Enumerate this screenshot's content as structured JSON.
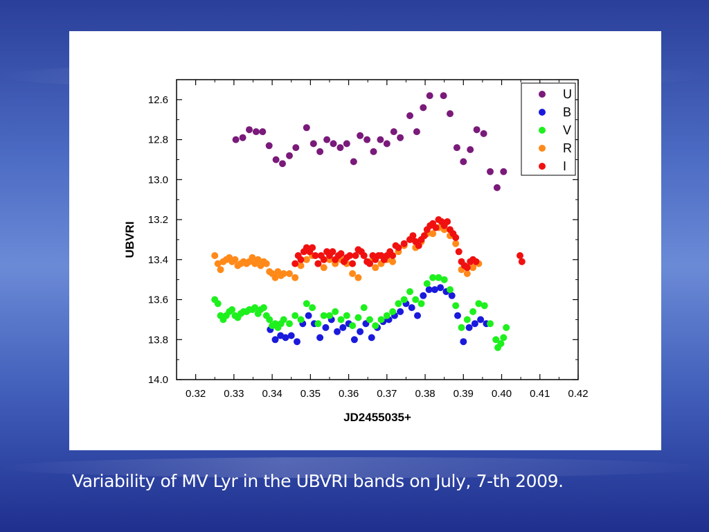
{
  "caption": "Variability of MV Lyr in the UBVRI bands on July, 7-th 2009.",
  "chart_data": {
    "type": "scatter",
    "title": "",
    "xlabel": "JD2455035+",
    "ylabel": "UBVRI",
    "xlim": [
      0.315,
      0.42
    ],
    "ylim": [
      14.0,
      12.5
    ],
    "y_inverted": true,
    "xticks": [
      "0.32",
      "0.33",
      "0.34",
      "0.35",
      "0.36",
      "0.37",
      "0.38",
      "0.39",
      "0.40",
      "0.41",
      "0.42"
    ],
    "yticks": [
      "12.6",
      "12.8",
      "13.0",
      "13.2",
      "13.4",
      "13.6",
      "13.8",
      "14.0"
    ],
    "legend_position": "top-right",
    "grid": false,
    "series": [
      {
        "name": "U",
        "color": "#7a1a7a",
        "points": [
          [
            0.3305,
            12.8
          ],
          [
            0.3323,
            12.79
          ],
          [
            0.334,
            12.75
          ],
          [
            0.3358,
            12.76
          ],
          [
            0.3375,
            12.76
          ],
          [
            0.3392,
            12.83
          ],
          [
            0.341,
            12.9
          ],
          [
            0.3427,
            12.92
          ],
          [
            0.3445,
            12.88
          ],
          [
            0.3462,
            12.84
          ],
          [
            0.349,
            12.74
          ],
          [
            0.3508,
            12.82
          ],
          [
            0.3525,
            12.86
          ],
          [
            0.3543,
            12.8
          ],
          [
            0.356,
            12.82
          ],
          [
            0.3578,
            12.84
          ],
          [
            0.3595,
            12.82
          ],
          [
            0.3613,
            12.91
          ],
          [
            0.363,
            12.78
          ],
          [
            0.3648,
            12.8
          ],
          [
            0.3665,
            12.86
          ],
          [
            0.3683,
            12.8
          ],
          [
            0.37,
            12.82
          ],
          [
            0.3718,
            12.76
          ],
          [
            0.3735,
            12.79
          ],
          [
            0.376,
            12.68
          ],
          [
            0.3778,
            12.76
          ],
          [
            0.3795,
            12.64
          ],
          [
            0.3812,
            12.58
          ],
          [
            0.3848,
            12.58
          ],
          [
            0.3865,
            12.67
          ],
          [
            0.3883,
            12.84
          ],
          [
            0.39,
            12.91
          ],
          [
            0.3918,
            12.85
          ],
          [
            0.3935,
            12.75
          ],
          [
            0.3953,
            12.77
          ],
          [
            0.397,
            12.96
          ],
          [
            0.3988,
            13.04
          ],
          [
            0.4005,
            12.96
          ]
        ]
      },
      {
        "name": "B",
        "color": "#1a1adc",
        "points": [
          [
            0.3395,
            13.75
          ],
          [
            0.3408,
            13.8
          ],
          [
            0.3422,
            13.78
          ],
          [
            0.3435,
            13.79
          ],
          [
            0.345,
            13.78
          ],
          [
            0.3465,
            13.81
          ],
          [
            0.348,
            13.72
          ],
          [
            0.3495,
            13.68
          ],
          [
            0.351,
            13.72
          ],
          [
            0.3525,
            13.79
          ],
          [
            0.354,
            13.74
          ],
          [
            0.3555,
            13.7
          ],
          [
            0.357,
            13.76
          ],
          [
            0.3585,
            13.74
          ],
          [
            0.36,
            13.72
          ],
          [
            0.3615,
            13.8
          ],
          [
            0.363,
            13.76
          ],
          [
            0.3645,
            13.72
          ],
          [
            0.366,
            13.79
          ],
          [
            0.3675,
            13.74
          ],
          [
            0.369,
            13.71
          ],
          [
            0.3705,
            13.7
          ],
          [
            0.372,
            13.68
          ],
          [
            0.3735,
            13.66
          ],
          [
            0.375,
            13.62
          ],
          [
            0.3765,
            13.64
          ],
          [
            0.378,
            13.68
          ],
          [
            0.3795,
            13.58
          ],
          [
            0.381,
            13.55
          ],
          [
            0.3825,
            13.55
          ],
          [
            0.384,
            13.54
          ],
          [
            0.3855,
            13.56
          ],
          [
            0.387,
            13.58
          ],
          [
            0.3885,
            13.68
          ],
          [
            0.39,
            13.81
          ],
          [
            0.3915,
            13.74
          ],
          [
            0.393,
            13.72
          ],
          [
            0.3945,
            13.7
          ],
          [
            0.396,
            13.72
          ]
        ]
      },
      {
        "name": "V",
        "color": "#1ef01e",
        "points": [
          [
            0.325,
            13.6
          ],
          [
            0.3258,
            13.62
          ],
          [
            0.3265,
            13.68
          ],
          [
            0.3272,
            13.7
          ],
          [
            0.328,
            13.68
          ],
          [
            0.3288,
            13.66
          ],
          [
            0.3295,
            13.65
          ],
          [
            0.3303,
            13.68
          ],
          [
            0.331,
            13.69
          ],
          [
            0.3318,
            13.67
          ],
          [
            0.3325,
            13.66
          ],
          [
            0.3333,
            13.66
          ],
          [
            0.334,
            13.65
          ],
          [
            0.3348,
            13.65
          ],
          [
            0.3355,
            13.64
          ],
          [
            0.3363,
            13.67
          ],
          [
            0.337,
            13.65
          ],
          [
            0.3378,
            13.64
          ],
          [
            0.3385,
            13.68
          ],
          [
            0.3393,
            13.7
          ],
          [
            0.34,
            13.73
          ],
          [
            0.3408,
            13.72
          ],
          [
            0.3415,
            13.74
          ],
          [
            0.3423,
            13.72
          ],
          [
            0.343,
            13.7
          ],
          [
            0.3445,
            13.72
          ],
          [
            0.346,
            13.68
          ],
          [
            0.3475,
            13.7
          ],
          [
            0.349,
            13.62
          ],
          [
            0.3505,
            13.64
          ],
          [
            0.352,
            13.72
          ],
          [
            0.3535,
            13.68
          ],
          [
            0.355,
            13.68
          ],
          [
            0.3565,
            13.66
          ],
          [
            0.358,
            13.7
          ],
          [
            0.3595,
            13.68
          ],
          [
            0.361,
            13.73
          ],
          [
            0.3625,
            13.69
          ],
          [
            0.364,
            13.64
          ],
          [
            0.3655,
            13.7
          ],
          [
            0.367,
            13.73
          ],
          [
            0.3685,
            13.7
          ],
          [
            0.37,
            13.68
          ],
          [
            0.3715,
            13.66
          ],
          [
            0.373,
            13.62
          ],
          [
            0.3745,
            13.6
          ],
          [
            0.376,
            13.56
          ],
          [
            0.3775,
            13.6
          ],
          [
            0.379,
            13.62
          ],
          [
            0.3805,
            13.52
          ],
          [
            0.382,
            13.49
          ],
          [
            0.3835,
            13.49
          ],
          [
            0.385,
            13.5
          ],
          [
            0.3865,
            13.55
          ],
          [
            0.388,
            13.63
          ],
          [
            0.3895,
            13.74
          ],
          [
            0.391,
            13.7
          ],
          [
            0.3925,
            13.66
          ],
          [
            0.394,
            13.62
          ],
          [
            0.3955,
            13.63
          ],
          [
            0.397,
            13.72
          ],
          [
            0.3985,
            13.8
          ],
          [
            0.399,
            13.84
          ],
          [
            0.3998,
            13.82
          ],
          [
            0.4005,
            13.79
          ],
          [
            0.4012,
            13.74
          ]
        ]
      },
      {
        "name": "R",
        "color": "#ff8a1a",
        "points": [
          [
            0.325,
            13.38
          ],
          [
            0.3258,
            13.42
          ],
          [
            0.3265,
            13.45
          ],
          [
            0.3272,
            13.41
          ],
          [
            0.328,
            13.4
          ],
          [
            0.3288,
            13.39
          ],
          [
            0.3295,
            13.41
          ],
          [
            0.3303,
            13.4
          ],
          [
            0.331,
            13.43
          ],
          [
            0.3318,
            13.42
          ],
          [
            0.3325,
            13.41
          ],
          [
            0.3333,
            13.42
          ],
          [
            0.334,
            13.41
          ],
          [
            0.3348,
            13.39
          ],
          [
            0.3355,
            13.42
          ],
          [
            0.3363,
            13.4
          ],
          [
            0.337,
            13.43
          ],
          [
            0.3378,
            13.41
          ],
          [
            0.3385,
            13.42
          ],
          [
            0.3393,
            13.46
          ],
          [
            0.34,
            13.47
          ],
          [
            0.3408,
            13.49
          ],
          [
            0.3415,
            13.46
          ],
          [
            0.3423,
            13.48
          ],
          [
            0.343,
            13.47
          ],
          [
            0.3445,
            13.47
          ],
          [
            0.346,
            13.49
          ],
          [
            0.3475,
            13.43
          ],
          [
            0.349,
            13.4
          ],
          [
            0.3505,
            13.38
          ],
          [
            0.352,
            13.42
          ],
          [
            0.3535,
            13.44
          ],
          [
            0.355,
            13.4
          ],
          [
            0.3565,
            13.42
          ],
          [
            0.358,
            13.4
          ],
          [
            0.3595,
            13.42
          ],
          [
            0.361,
            13.47
          ],
          [
            0.3625,
            13.49
          ],
          [
            0.364,
            13.38
          ],
          [
            0.3655,
            13.41
          ],
          [
            0.367,
            13.44
          ],
          [
            0.3685,
            13.42
          ],
          [
            0.37,
            13.4
          ],
          [
            0.3715,
            13.41
          ],
          [
            0.373,
            13.36
          ],
          [
            0.3745,
            13.33
          ],
          [
            0.376,
            13.3
          ],
          [
            0.3775,
            13.34
          ],
          [
            0.379,
            13.31
          ],
          [
            0.3805,
            13.27
          ],
          [
            0.382,
            13.27
          ],
          [
            0.3835,
            13.24
          ],
          [
            0.385,
            13.25
          ],
          [
            0.3865,
            13.28
          ],
          [
            0.388,
            13.32
          ],
          [
            0.3895,
            13.45
          ],
          [
            0.391,
            13.47
          ],
          [
            0.3925,
            13.44
          ],
          [
            0.394,
            13.42
          ]
        ]
      },
      {
        "name": "I",
        "color": "#f01010",
        "points": [
          [
            0.346,
            13.42
          ],
          [
            0.3468,
            13.38
          ],
          [
            0.3475,
            13.4
          ],
          [
            0.3483,
            13.36
          ],
          [
            0.349,
            13.34
          ],
          [
            0.3498,
            13.36
          ],
          [
            0.3505,
            13.34
          ],
          [
            0.3513,
            13.38
          ],
          [
            0.352,
            13.42
          ],
          [
            0.3528,
            13.38
          ],
          [
            0.3535,
            13.4
          ],
          [
            0.3543,
            13.36
          ],
          [
            0.355,
            13.38
          ],
          [
            0.3558,
            13.36
          ],
          [
            0.3565,
            13.4
          ],
          [
            0.3573,
            13.38
          ],
          [
            0.358,
            13.37
          ],
          [
            0.3588,
            13.41
          ],
          [
            0.3595,
            13.39
          ],
          [
            0.3603,
            13.38
          ],
          [
            0.361,
            13.42
          ],
          [
            0.3618,
            13.38
          ],
          [
            0.3625,
            13.35
          ],
          [
            0.3633,
            13.36
          ],
          [
            0.364,
            13.38
          ],
          [
            0.3648,
            13.41
          ],
          [
            0.3655,
            13.42
          ],
          [
            0.3663,
            13.38
          ],
          [
            0.367,
            13.4
          ],
          [
            0.3678,
            13.38
          ],
          [
            0.3685,
            13.38
          ],
          [
            0.3693,
            13.4
          ],
          [
            0.37,
            13.38
          ],
          [
            0.3708,
            13.36
          ],
          [
            0.3715,
            13.38
          ],
          [
            0.3723,
            13.33
          ],
          [
            0.373,
            13.34
          ],
          [
            0.3745,
            13.32
          ],
          [
            0.376,
            13.3
          ],
          [
            0.3768,
            13.28
          ],
          [
            0.3775,
            13.31
          ],
          [
            0.3783,
            13.33
          ],
          [
            0.379,
            13.3
          ],
          [
            0.3798,
            13.28
          ],
          [
            0.3805,
            13.25
          ],
          [
            0.3813,
            13.23
          ],
          [
            0.382,
            13.22
          ],
          [
            0.3828,
            13.24
          ],
          [
            0.3835,
            13.2
          ],
          [
            0.3843,
            13.21
          ],
          [
            0.385,
            13.23
          ],
          [
            0.3858,
            13.21
          ],
          [
            0.3865,
            13.25
          ],
          [
            0.3873,
            13.27
          ],
          [
            0.388,
            13.29
          ],
          [
            0.3888,
            13.36
          ],
          [
            0.3895,
            13.41
          ],
          [
            0.3903,
            13.43
          ],
          [
            0.391,
            13.44
          ],
          [
            0.3918,
            13.41
          ],
          [
            0.3925,
            13.4
          ],
          [
            0.3933,
            13.41
          ],
          [
            0.4048,
            13.38
          ],
          [
            0.4053,
            13.41
          ]
        ]
      }
    ]
  }
}
